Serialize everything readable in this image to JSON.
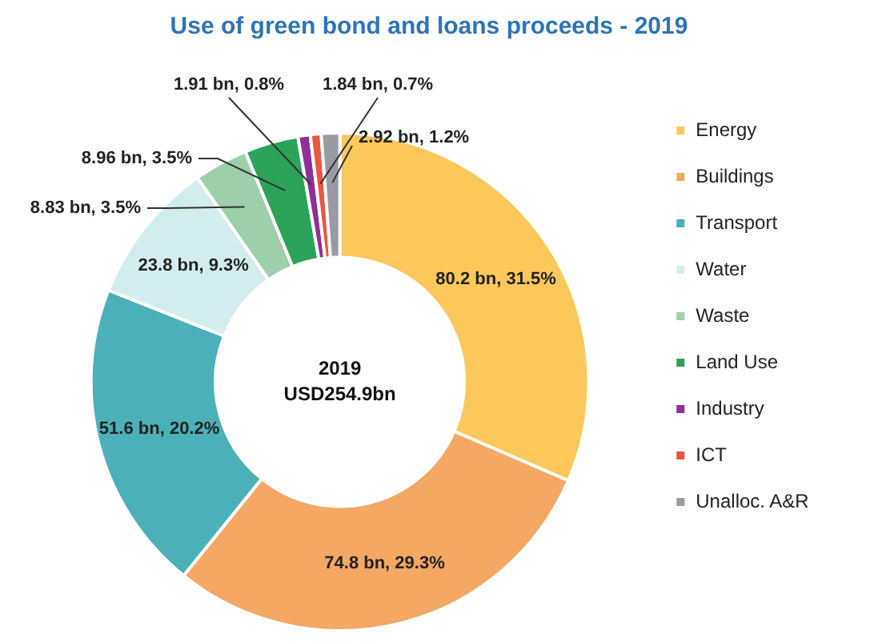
{
  "chart_data": {
    "type": "donut",
    "title": "Use of green bond and loans proceeds - 2019",
    "categories": [
      "Energy",
      "Buildings",
      "Transport",
      "Water",
      "Waste",
      "Land Use",
      "Industry",
      "ICT",
      "Unalloc. A&R"
    ],
    "values": [
      31.5,
      29.3,
      20.2,
      9.3,
      3.5,
      3.5,
      0.8,
      0.7,
      1.2
    ],
    "value_labels": [
      "80.2 bn, 31.5%",
      "74.8 bn, 29.3%",
      "51.6 bn, 20.2%",
      "23.8 bn, 9.3%",
      "8.83 bn, 3.5%",
      "8.96 bn, 3.5%",
      "1.91 bn, 0.8%",
      "1.84 bn, 0.7%",
      "2.92 bn, 1.2%"
    ],
    "colors": [
      "#fcc85c",
      "#f5a764",
      "#4cb0b9",
      "#d3edee",
      "#9dcfaa",
      "#2ba35a",
      "#8e2f96",
      "#e8573f",
      "#9a9aa2"
    ],
    "annotations": [
      "2019",
      "USD254.9bn"
    ],
    "legend": "right"
  }
}
